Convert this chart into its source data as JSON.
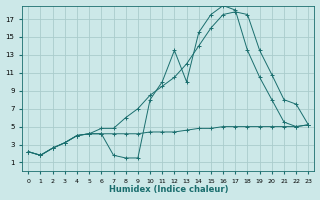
{
  "xlabel": "Humidex (Indice chaleur)",
  "bg_color": "#cce8e8",
  "grid_color": "#aacccc",
  "line_color": "#1a6e6e",
  "xlim": [
    -0.5,
    23.5
  ],
  "ylim": [
    0,
    18.5
  ],
  "xticks": [
    0,
    1,
    2,
    3,
    4,
    5,
    6,
    7,
    8,
    9,
    10,
    11,
    12,
    13,
    14,
    15,
    16,
    17,
    18,
    19,
    20,
    21,
    22,
    23
  ],
  "yticks": [
    1,
    3,
    5,
    7,
    9,
    11,
    13,
    15,
    17
  ],
  "series1_x": [
    0,
    1,
    2,
    3,
    4,
    5,
    6,
    7,
    8,
    9,
    10,
    11,
    12,
    13,
    14,
    15,
    16,
    17,
    18,
    19,
    20,
    21,
    22,
    23
  ],
  "series1_y": [
    2.2,
    1.8,
    2.6,
    3.2,
    4.0,
    4.2,
    4.2,
    4.2,
    4.2,
    4.2,
    4.4,
    4.4,
    4.4,
    4.6,
    4.8,
    4.8,
    5.0,
    5.0,
    5.0,
    5.0,
    5.0,
    5.0,
    5.0,
    5.2
  ],
  "series2_x": [
    0,
    1,
    2,
    3,
    4,
    5,
    6,
    7,
    8,
    9,
    10,
    11,
    12,
    13,
    14,
    15,
    16,
    17,
    18,
    19,
    20,
    21,
    22,
    23
  ],
  "series2_y": [
    2.2,
    1.8,
    2.6,
    3.2,
    4.0,
    4.2,
    4.2,
    1.8,
    1.5,
    1.5,
    8.0,
    10.0,
    13.5,
    10.0,
    15.5,
    17.5,
    18.5,
    18.0,
    13.5,
    10.5,
    8.0,
    5.5,
    5.0,
    5.2
  ],
  "series3_x": [
    0,
    1,
    2,
    3,
    4,
    5,
    6,
    7,
    8,
    9,
    10,
    11,
    12,
    13,
    14,
    15,
    16,
    17,
    18,
    19,
    20,
    21,
    22,
    23
  ],
  "series3_y": [
    2.2,
    1.8,
    2.6,
    3.2,
    4.0,
    4.2,
    4.8,
    4.8,
    6.0,
    7.0,
    8.5,
    9.5,
    10.5,
    12.0,
    14.0,
    16.0,
    17.5,
    17.8,
    17.5,
    13.5,
    10.8,
    8.0,
    7.5,
    5.2
  ]
}
